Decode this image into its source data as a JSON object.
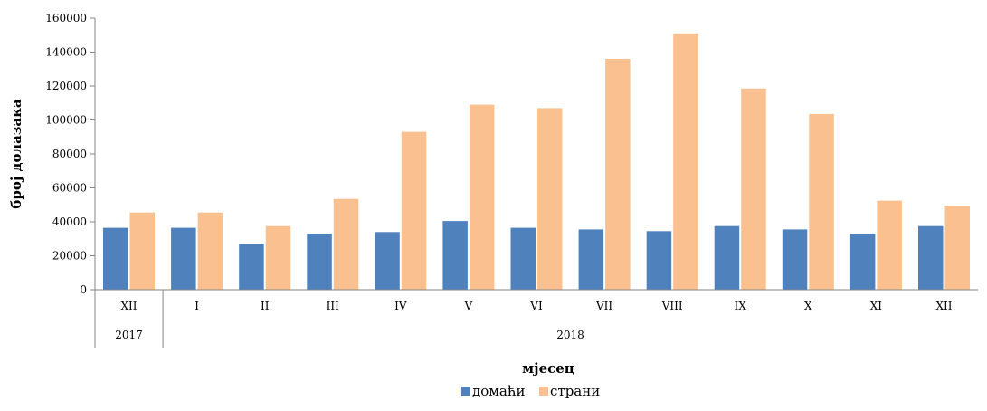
{
  "chart_data": {
    "type": "bar",
    "title": "",
    "xlabel": "мјесец",
    "ylabel": "број долазака",
    "ylim": [
      0,
      160000
    ],
    "yticks": [
      0,
      20000,
      40000,
      60000,
      80000,
      100000,
      120000,
      140000,
      160000
    ],
    "grid": false,
    "legend_position": "bottom",
    "categories": [
      "XII",
      "I",
      "II",
      "III",
      "IV",
      "V",
      "VI",
      "VII",
      "VIII",
      "IX",
      "X",
      "XI",
      "XII"
    ],
    "groups": [
      {
        "label": "2017",
        "span": 1
      },
      {
        "label": "2018",
        "span": 12
      }
    ],
    "series": [
      {
        "name": "домаћи",
        "color": "#4f81bd",
        "values": [
          36500,
          36500,
          27000,
          33000,
          34000,
          40500,
          36500,
          35500,
          34500,
          37500,
          35500,
          33000,
          37500
        ]
      },
      {
        "name": "страни",
        "color": "#fac090",
        "values": [
          45500,
          45500,
          37500,
          53500,
          93000,
          109000,
          107000,
          136000,
          150500,
          118500,
          103500,
          52500,
          49500
        ]
      }
    ]
  }
}
